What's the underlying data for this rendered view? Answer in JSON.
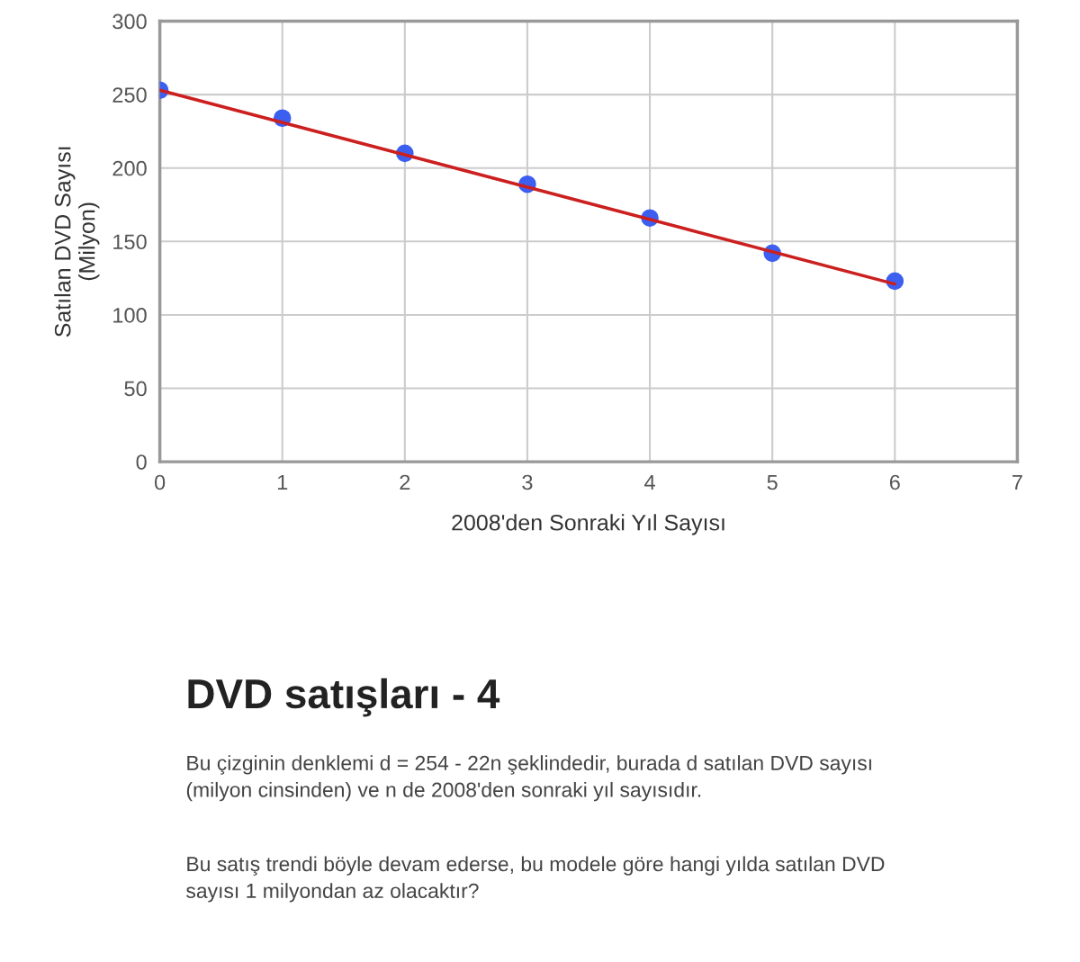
{
  "chart_data": {
    "type": "scatter",
    "title": "DVD satışları - 4",
    "xlabel": "2008'den Sonraki Yıl Sayısı",
    "ylabel": "Satılan DVD Sayısı\n(Milyon)",
    "x": [
      0,
      1,
      2,
      3,
      4,
      5,
      6
    ],
    "series": [
      {
        "color": "#3d5ff0",
        "values": [
          253,
          234,
          210,
          189,
          166,
          142,
          123
        ]
      },
      {
        "type": "line",
        "color": "#cc1f1f",
        "x": [
          0,
          6
        ],
        "values": [
          253,
          121
        ],
        "marker": "none"
      }
    ],
    "xlim": [
      0,
      7
    ],
    "xticks": [
      0,
      1,
      2,
      3,
      4,
      5,
      6,
      7
    ],
    "ylim": [
      0,
      300
    ],
    "yticks": [
      0,
      50,
      100,
      150,
      200,
      250,
      300
    ],
    "grid": true,
    "marker": "circle",
    "annotations": [
      "Bu çizginin denklemi d = 254 - 22n şeklindedir, burada d satılan DVD sayısı (milyon cinsinden) ve n de 2008'den sonraki yıl sayısıdır.",
      "Bu satış trendi böyle devam ederse, bu modele göre hangi yılda satılan DVD sayısı 1 milyondan az olacaktır?"
    ]
  }
}
